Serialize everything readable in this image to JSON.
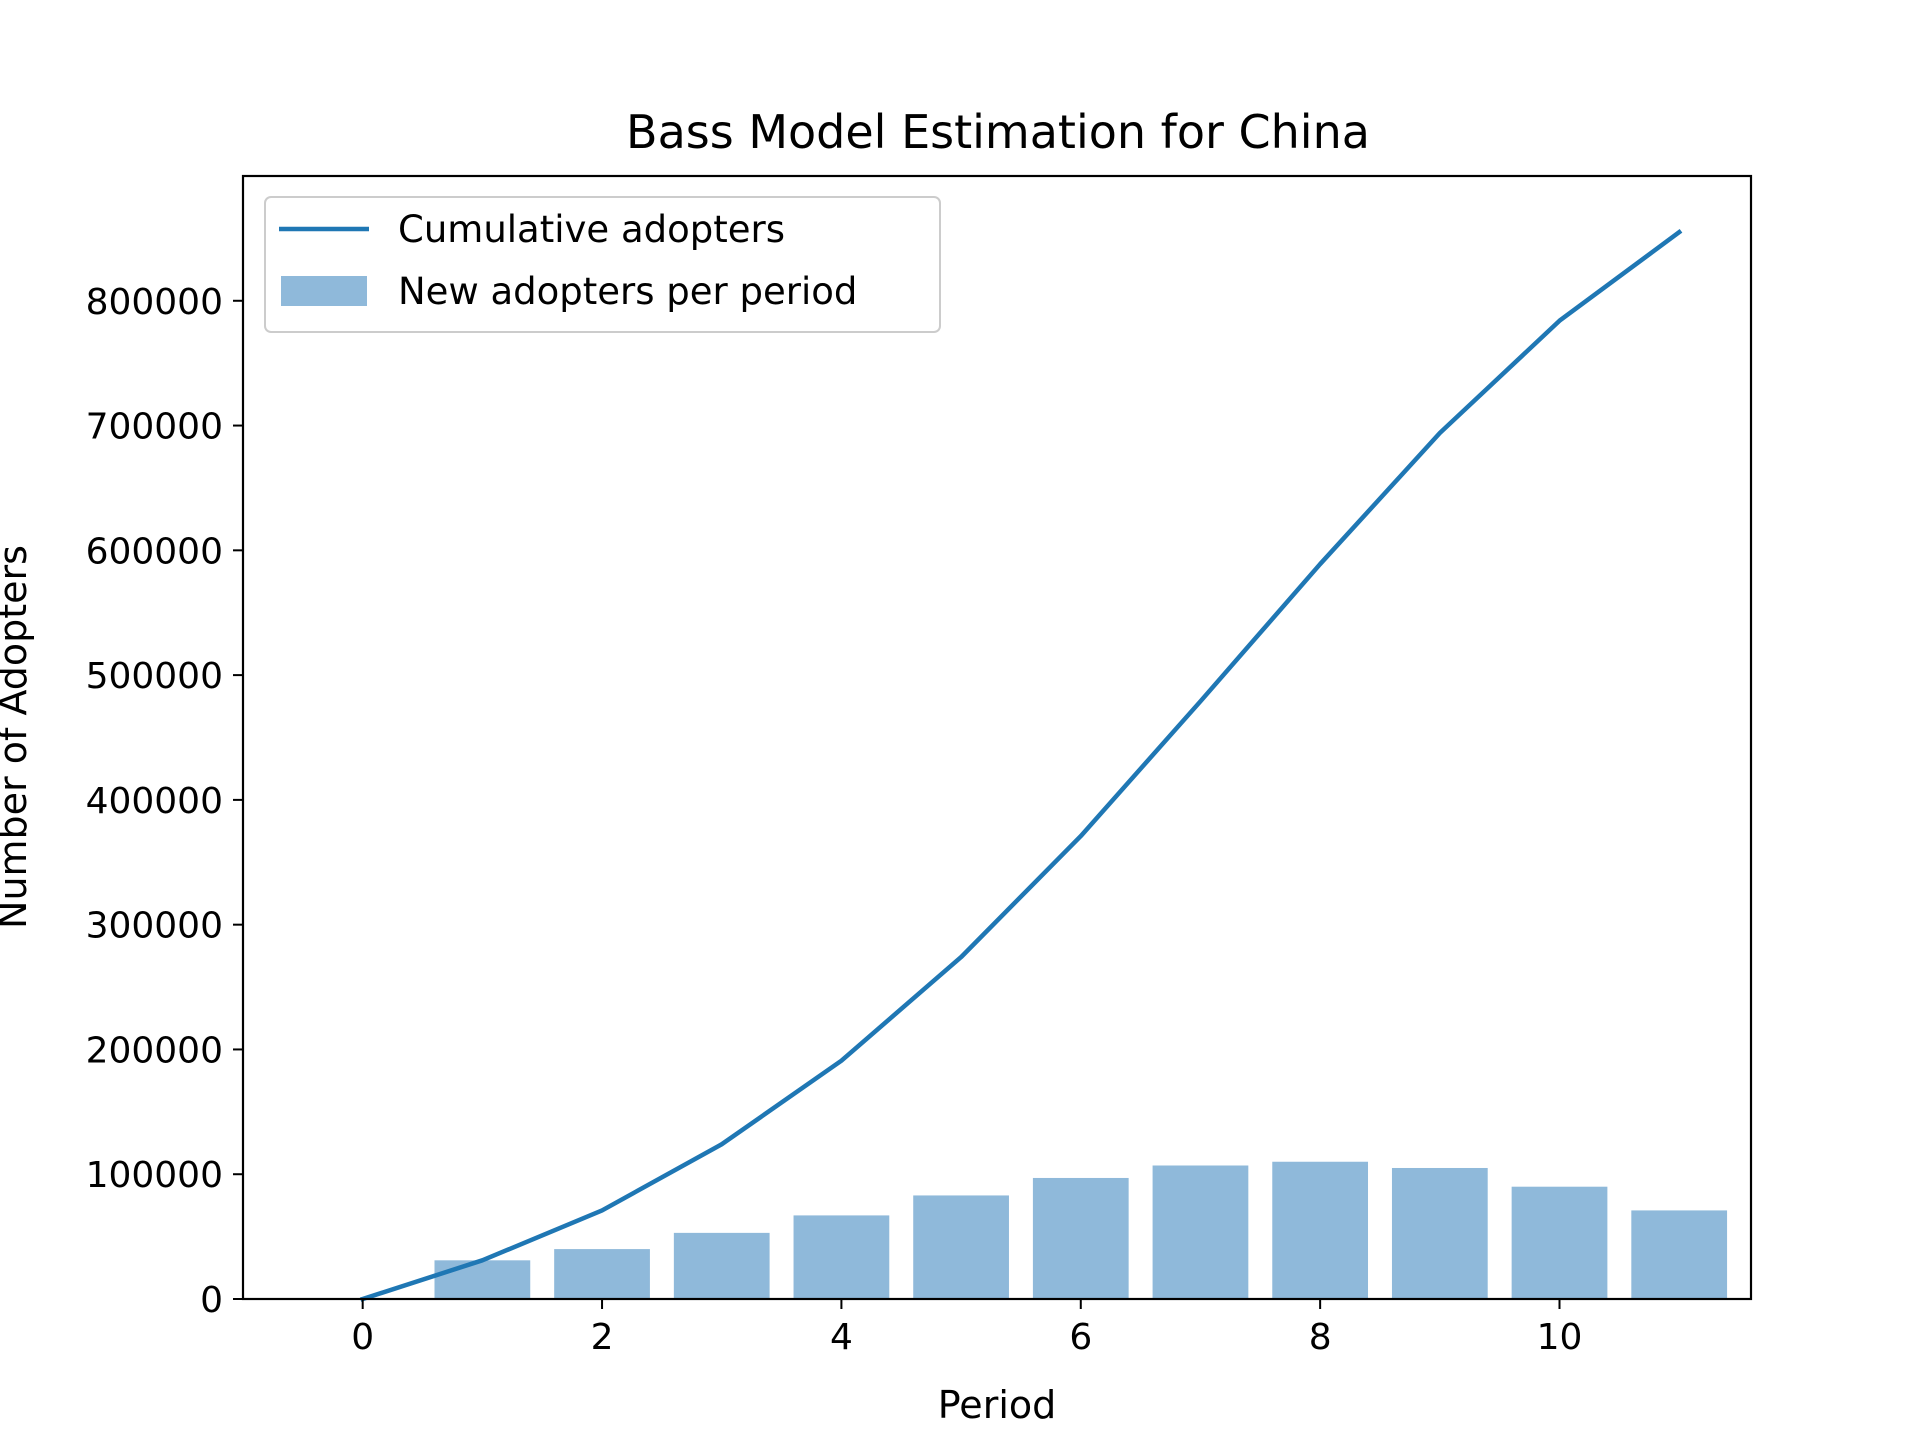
{
  "chart_data": {
    "type": "bar+line",
    "title": "Bass Model Estimation for China",
    "xlabel": "Period",
    "ylabel": "Number of Adopters",
    "xlim": [
      -1,
      11.6
    ],
    "ylim": [
      0,
      900000
    ],
    "xticks": [
      0,
      2,
      4,
      6,
      8,
      10
    ],
    "yticks": [
      0,
      100000,
      200000,
      300000,
      400000,
      500000,
      600000,
      700000,
      800000
    ],
    "grid": false,
    "legend_position": "upper-left",
    "series": [
      {
        "name": "Cumulative adopters",
        "type": "line",
        "color": "#1f77b4",
        "x": [
          0,
          1,
          2,
          3,
          4,
          5,
          6,
          7,
          8,
          9,
          10,
          11
        ],
        "values": [
          0,
          31000,
          71000,
          124000,
          191000,
          274000,
          371000,
          479000,
          589000,
          694000,
          784000,
          855000
        ]
      },
      {
        "name": "New adopters per period",
        "type": "bar",
        "color": "#8fb9da",
        "x": [
          1,
          2,
          3,
          4,
          5,
          6,
          7,
          8,
          9,
          10,
          11
        ],
        "values": [
          31000,
          40000,
          53000,
          67000,
          83000,
          97000,
          107000,
          110000,
          105000,
          90000,
          71000
        ]
      }
    ]
  }
}
